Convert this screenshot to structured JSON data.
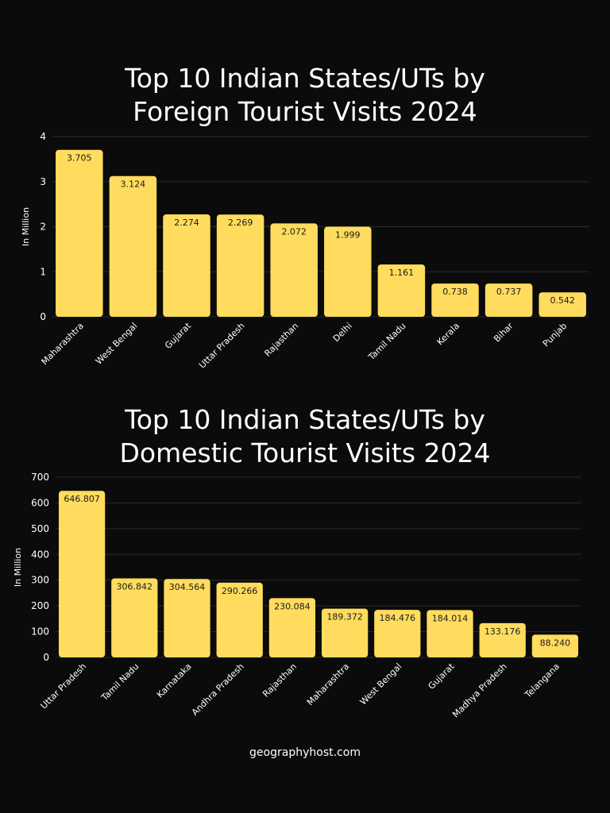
{
  "colors": {
    "background": "#0b0b0b",
    "bar": "#ffdc5e",
    "text": "#ffffff",
    "grid": "#2b2b2b",
    "label": "#1a1a1a"
  },
  "footer": "geographyhost.com",
  "chart_data": [
    {
      "type": "bar",
      "title_line1": "Top 10 Indian States/UTs by",
      "title_line2": "Foreign Tourist Visits 2024",
      "ylabel": "In Million",
      "ylim": [
        0,
        4
      ],
      "yticks": [
        0,
        1,
        2,
        3,
        4
      ],
      "grid": true,
      "categories": [
        "Maharashtra",
        "West Bengal",
        "Gujarat",
        "Uttar Pradesh",
        "Rajasthan",
        "Delhi",
        "Tamil Nadu",
        "Kerala",
        "Bihar",
        "Punjab"
      ],
      "values": [
        3.705,
        3.124,
        2.274,
        2.269,
        2.072,
        1.999,
        1.161,
        0.738,
        0.737,
        0.542
      ],
      "value_labels": [
        "3.705",
        "3.124",
        "2.274",
        "2.269",
        "2.072",
        "1.999",
        "1.161",
        "0.738",
        "0.737",
        "0.542"
      ]
    },
    {
      "type": "bar",
      "title_line1": "Top 10 Indian States/UTs by",
      "title_line2": "Domestic Tourist Visits 2024",
      "ylabel": "In Million",
      "ylim": [
        0,
        700
      ],
      "yticks": [
        0,
        100,
        200,
        300,
        400,
        500,
        600,
        700
      ],
      "grid": true,
      "categories": [
        "Uttar Pradesh",
        "Tamil Nadu",
        "Karnataka",
        "Andhra Pradesh",
        "Rajasthan",
        "Maharashtra",
        "West Bengal",
        "Gujarat",
        "Madhya Pradesh",
        "Telangana"
      ],
      "values": [
        646.807,
        306.842,
        304.564,
        290.266,
        230.084,
        189.372,
        184.476,
        184.014,
        133.176,
        88.24
      ],
      "value_labels": [
        "646.807",
        "306.842",
        "304.564",
        "290.266",
        "230.084",
        "189.372",
        "184.476",
        "184.014",
        "133.176",
        "88.240"
      ]
    }
  ]
}
